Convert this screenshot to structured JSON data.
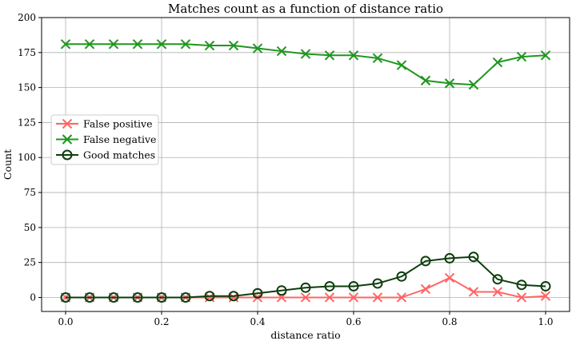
{
  "chart_data": {
    "type": "line",
    "title": "Matches count as a function of distance ratio",
    "xlabel": "distance ratio",
    "ylabel": "Count",
    "xlim": [
      -0.05,
      1.05
    ],
    "ylim": [
      -10,
      200
    ],
    "xticks": [
      0.0,
      0.2,
      0.4,
      0.6,
      0.8,
      1.0
    ],
    "xtick_labels": [
      "0.0",
      "0.2",
      "0.4",
      "0.6",
      "0.8",
      "1.0"
    ],
    "yticks": [
      0,
      25,
      50,
      75,
      100,
      125,
      150,
      175,
      200
    ],
    "ytick_labels": [
      "0",
      "25",
      "50",
      "75",
      "100",
      "125",
      "150",
      "175",
      "200"
    ],
    "grid": true,
    "legend_position": "center-left",
    "x": [
      0.0,
      0.05,
      0.1,
      0.15,
      0.2,
      0.25,
      0.3,
      0.35,
      0.4,
      0.45,
      0.5,
      0.55,
      0.6,
      0.65,
      0.7,
      0.75,
      0.8,
      0.85,
      0.9,
      0.95,
      1.0
    ],
    "series": [
      {
        "name": "False positive",
        "color": "#ff6666",
        "marker": "x",
        "values": [
          0,
          0,
          0,
          0,
          0,
          0,
          0,
          0,
          0,
          0,
          0,
          0,
          0,
          0,
          0,
          6,
          14,
          4,
          4,
          0,
          1
        ]
      },
      {
        "name": "False negative",
        "color": "#1f961f",
        "marker": "x",
        "values": [
          181,
          181,
          181,
          181,
          181,
          181,
          180,
          180,
          178,
          176,
          174,
          173,
          173,
          171,
          166,
          155,
          153,
          152,
          168,
          172,
          173
        ]
      },
      {
        "name": "Good matches",
        "color": "#0d3d0d",
        "marker": "circle-open",
        "values": [
          0,
          0,
          0,
          0,
          0,
          0,
          1,
          1,
          3,
          5,
          7,
          8,
          8,
          10,
          15,
          26,
          28,
          29,
          13,
          9,
          8
        ]
      }
    ]
  }
}
